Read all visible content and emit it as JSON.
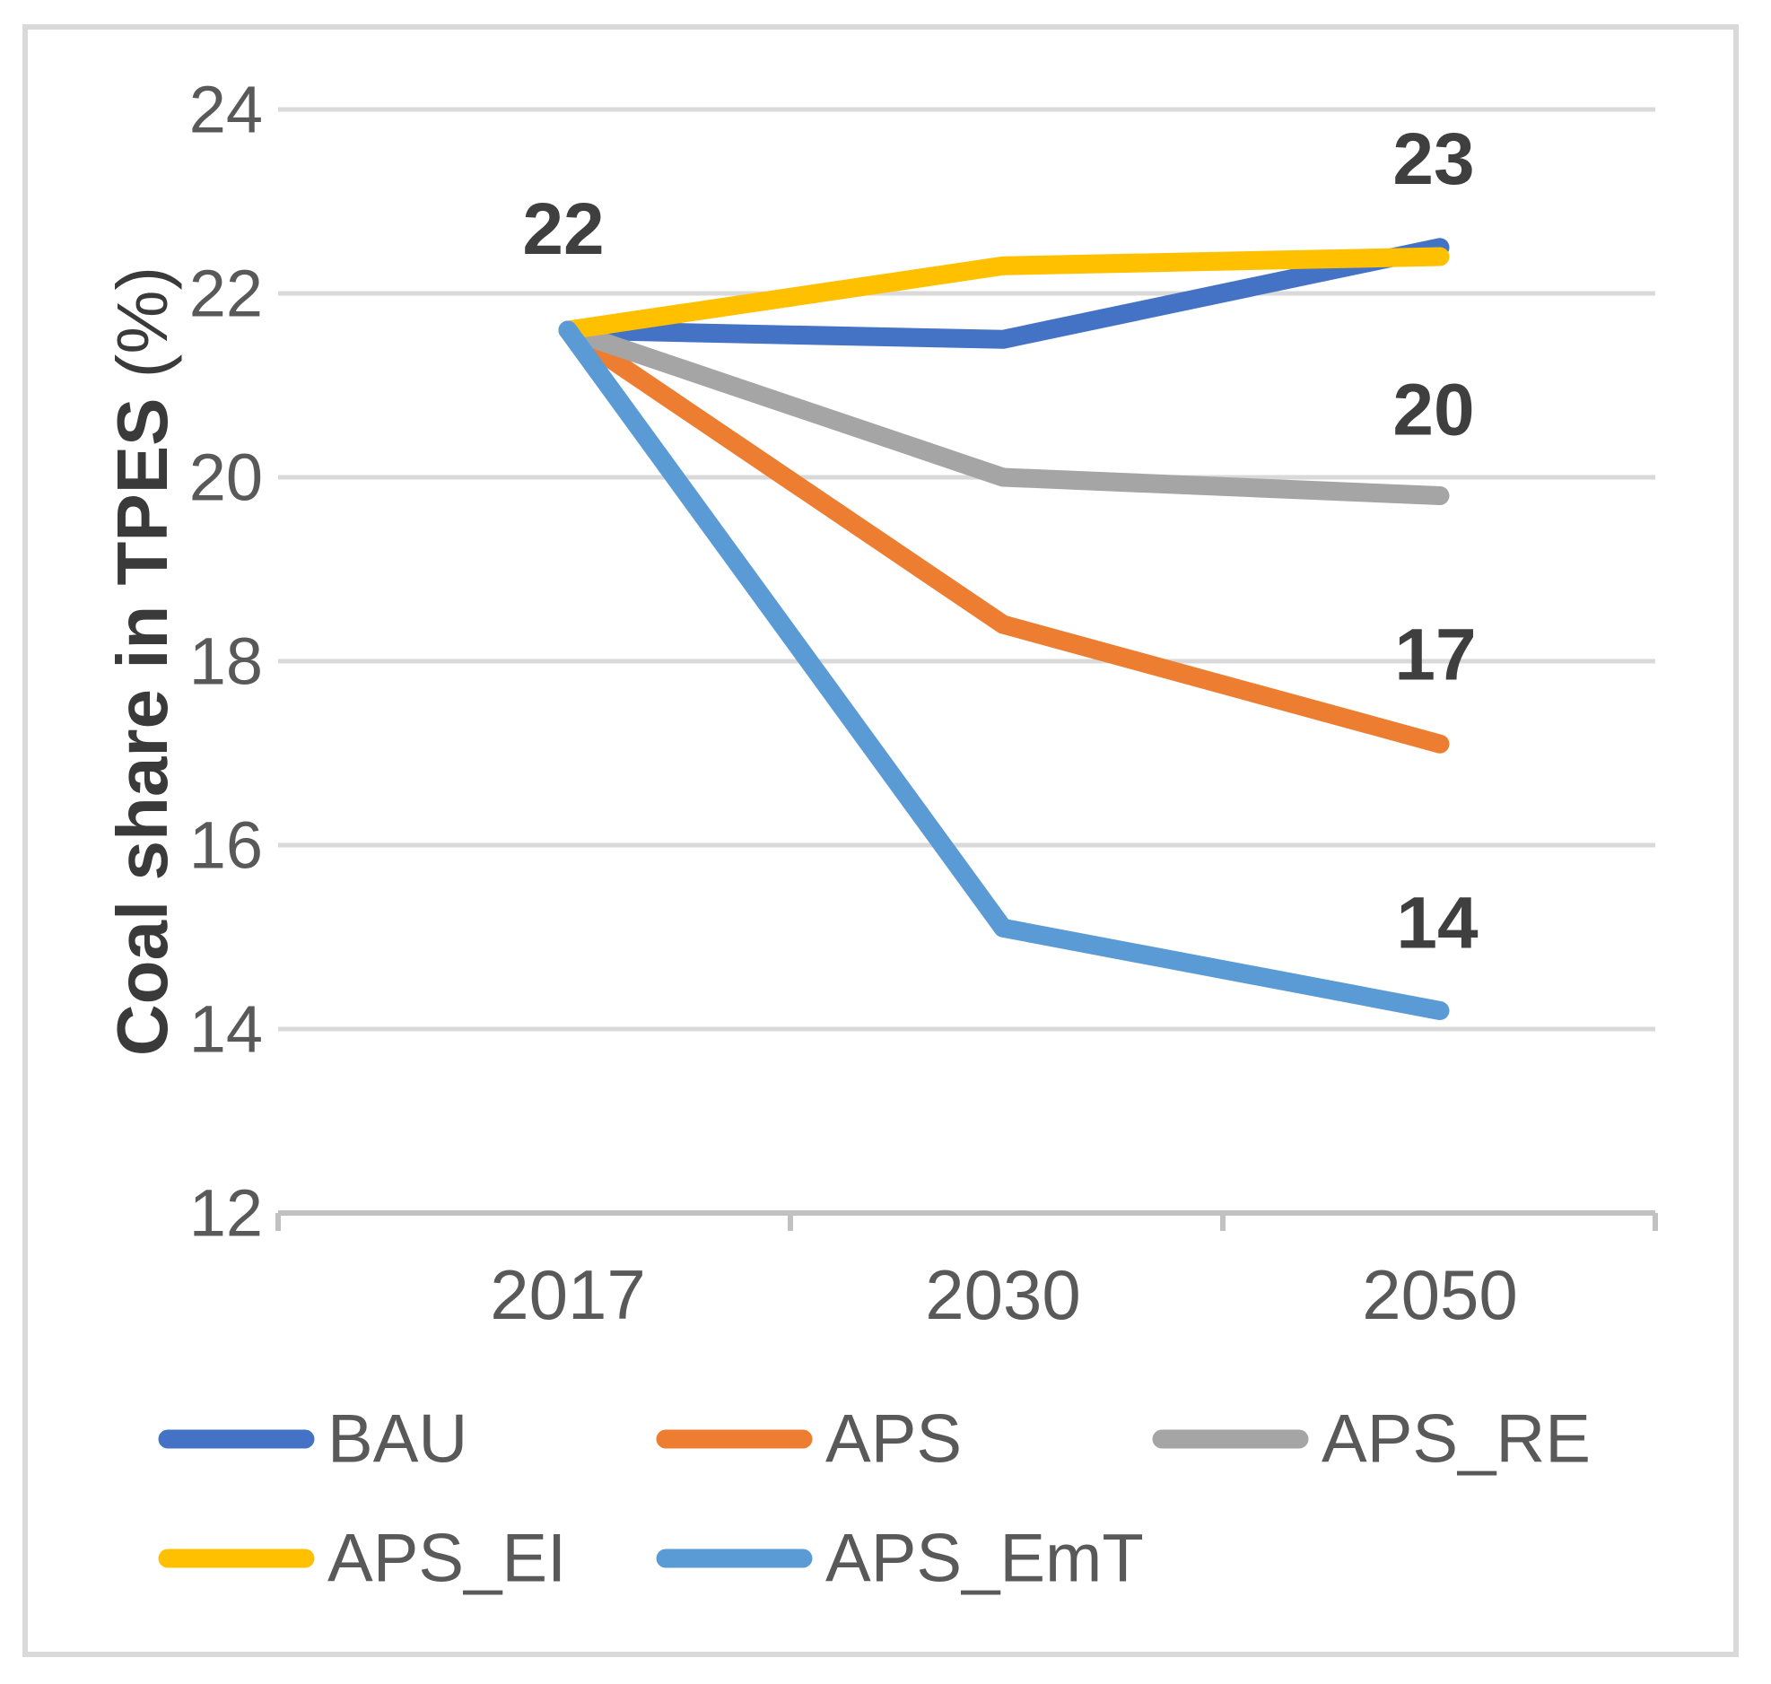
{
  "chart_data": {
    "type": "line",
    "title": "",
    "ylabel_bold": "Coal share in TPES",
    "ylabel_unit": " (%)",
    "xlabel": "",
    "categories": [
      "2017",
      "2030",
      "2050"
    ],
    "series": [
      {
        "name": "BAU",
        "color": "#4472C4",
        "values": [
          21.6,
          21.5,
          22.5
        ]
      },
      {
        "name": "APS",
        "color": "#ED7D31",
        "values": [
          21.6,
          18.4,
          17.1
        ]
      },
      {
        "name": "APS_RE",
        "color": "#A5A5A5",
        "values": [
          21.6,
          20.0,
          19.8
        ]
      },
      {
        "name": "APS_EI",
        "color": "#FFC000",
        "values": [
          21.6,
          22.3,
          22.4
        ]
      },
      {
        "name": "APS_EmT",
        "color": "#5B9BD5",
        "values": [
          21.6,
          15.1,
          14.2
        ]
      }
    ],
    "ylim": [
      12,
      24
    ],
    "yticks": [
      24,
      22,
      20,
      18,
      16,
      14,
      12
    ],
    "grid": true,
    "legend_position": "bottom",
    "annotations": [
      {
        "text": "22",
        "series": "BAU",
        "point": 0
      },
      {
        "text": "23",
        "series": "BAU",
        "point": 2
      },
      {
        "text": "20",
        "series": "APS_RE",
        "point": 2
      },
      {
        "text": "17",
        "series": "APS",
        "point": 2
      },
      {
        "text": "14",
        "series": "APS_EmT",
        "point": 2
      }
    ]
  },
  "style_colors": {
    "gridline": "#D9D9D9",
    "axis_line": "#C1C1C1",
    "frame_border": "#D9D9D9",
    "tick_text": "#595959",
    "legend_text": "#595959",
    "data_label_text": "#3F3F3F",
    "axis_title_text": "#3A3A3A"
  }
}
